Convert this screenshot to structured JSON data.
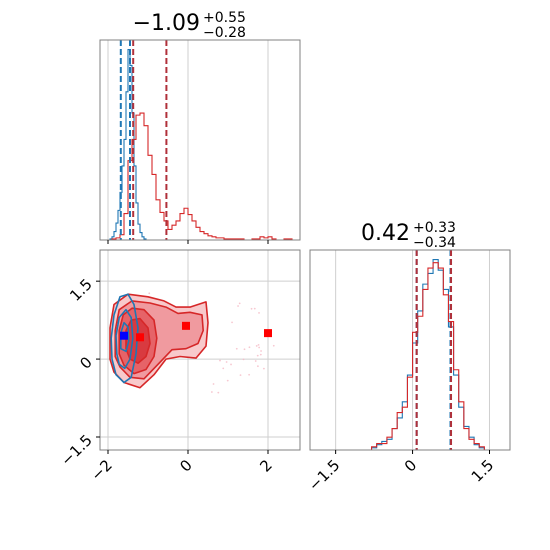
{
  "chart_data": [
    {
      "type": "histogram",
      "panel": "marginal-param-1",
      "title": {
        "value": "−1.09",
        "sup": "+0.55",
        "sub": "−0.28"
      },
      "xlim": [
        -2.2,
        2.8
      ],
      "xticks": [
        -2,
        0,
        2
      ],
      "grid": true,
      "quantile_lines": [
        {
          "series": "blue",
          "x": [
            -1.68,
            -1.45
          ]
        },
        {
          "series": "red",
          "x": [
            -1.37,
            -0.54
          ]
        }
      ],
      "series": [
        {
          "name": "blue",
          "color": "#1f77b4",
          "x_edges": [
            -2.0,
            -1.95,
            -1.9,
            -1.85,
            -1.8,
            -1.75,
            -1.7,
            -1.65,
            -1.6,
            -1.55,
            -1.5,
            -1.45,
            -1.4,
            -1.35,
            -1.3,
            -1.25,
            -1.2,
            -1.15,
            -1.1,
            -1.05,
            -1.0
          ],
          "counts": [
            0,
            1,
            3,
            8,
            16,
            28,
            45,
            70,
            95,
            140,
            180,
            165,
            120,
            70,
            35,
            15,
            7,
            3,
            1,
            0
          ]
        },
        {
          "name": "red",
          "color": "#d62728",
          "x_edges": [
            -2.0,
            -1.9,
            -1.8,
            -1.7,
            -1.6,
            -1.5,
            -1.4,
            -1.3,
            -1.2,
            -1.1,
            -1.0,
            -0.9,
            -0.8,
            -0.7,
            -0.6,
            -0.5,
            -0.4,
            -0.3,
            -0.2,
            -0.1,
            0.0,
            0.1,
            0.2,
            0.3,
            0.4,
            0.5,
            0.6,
            0.7,
            0.8,
            0.9,
            1.0,
            1.2,
            1.4,
            1.6,
            1.8,
            1.9,
            2.0,
            2.1,
            2.2,
            2.4,
            2.6
          ],
          "counts": [
            0,
            1,
            2,
            5,
            25,
            75,
            95,
            118,
            120,
            108,
            80,
            62,
            38,
            26,
            18,
            10,
            14,
            18,
            25,
            30,
            24,
            18,
            12,
            8,
            6,
            4,
            3,
            2,
            2,
            1,
            1,
            1,
            0,
            1,
            3,
            2,
            3,
            1,
            0,
            1
          ]
        }
      ]
    },
    {
      "type": "scatter-contour",
      "panel": "joint",
      "xlim": [
        -2.2,
        2.8
      ],
      "ylim": [
        -1.75,
        2.1
      ],
      "xticks": [
        -2,
        0,
        2
      ],
      "yticks": [
        -1.5,
        0.0,
        1.5
      ],
      "grid": true,
      "blue_contours": [
        [
          [
            -1.9,
            0.0
          ],
          [
            -1.92,
            0.4
          ],
          [
            -1.85,
            0.85
          ],
          [
            -1.7,
            1.2
          ],
          [
            -1.5,
            1.25
          ],
          [
            -1.35,
            1.05
          ],
          [
            -1.25,
            0.6
          ],
          [
            -1.3,
            0.1
          ],
          [
            -1.42,
            -0.35
          ],
          [
            -1.6,
            -0.45
          ],
          [
            -1.8,
            -0.3
          ]
        ],
        [
          [
            -1.78,
            0.1
          ],
          [
            -1.8,
            0.45
          ],
          [
            -1.72,
            0.8
          ],
          [
            -1.55,
            0.95
          ],
          [
            -1.42,
            0.8
          ],
          [
            -1.38,
            0.4
          ],
          [
            -1.45,
            0.0
          ],
          [
            -1.58,
            -0.18
          ],
          [
            -1.72,
            -0.1
          ]
        ],
        [
          [
            -1.68,
            0.2
          ],
          [
            -1.68,
            0.5
          ],
          [
            -1.6,
            0.7
          ],
          [
            -1.5,
            0.62
          ],
          [
            -1.48,
            0.35
          ],
          [
            -1.55,
            0.15
          ]
        ]
      ],
      "red_contours": [
        [
          [
            -1.95,
            0.0
          ],
          [
            -1.95,
            0.6
          ],
          [
            -1.85,
            1.05
          ],
          [
            -1.5,
            1.25
          ],
          [
            -1.0,
            1.2
          ],
          [
            -0.6,
            1.12
          ],
          [
            -0.3,
            1.0
          ],
          [
            0.05,
            1.0
          ],
          [
            0.45,
            1.1
          ],
          [
            0.5,
            0.7
          ],
          [
            0.45,
            0.25
          ],
          [
            0.2,
            0.02
          ],
          [
            -0.2,
            0.05
          ],
          [
            -0.55,
            0.0
          ],
          [
            -0.85,
            -0.3
          ],
          [
            -1.2,
            -0.55
          ],
          [
            -1.6,
            -0.45
          ],
          [
            -1.85,
            -0.25
          ]
        ],
        [
          [
            -1.82,
            0.05
          ],
          [
            -1.82,
            0.55
          ],
          [
            -1.72,
            0.95
          ],
          [
            -1.4,
            1.12
          ],
          [
            -0.95,
            1.08
          ],
          [
            -0.55,
            1.0
          ],
          [
            -0.25,
            0.88
          ],
          [
            0.05,
            0.9
          ],
          [
            0.35,
            0.85
          ],
          [
            0.38,
            0.55
          ],
          [
            0.25,
            0.3
          ],
          [
            -0.05,
            0.2
          ],
          [
            -0.4,
            0.18
          ],
          [
            -0.75,
            -0.1
          ],
          [
            -1.1,
            -0.38
          ],
          [
            -1.45,
            -0.35
          ],
          [
            -1.7,
            -0.15
          ]
        ],
        [
          [
            -1.72,
            0.1
          ],
          [
            -1.72,
            0.55
          ],
          [
            -1.62,
            0.85
          ],
          [
            -1.4,
            0.98
          ],
          [
            -1.1,
            0.95
          ],
          [
            -0.85,
            0.75
          ],
          [
            -0.78,
            0.4
          ],
          [
            -0.85,
            0.05
          ],
          [
            -1.05,
            -0.2
          ],
          [
            -1.35,
            -0.28
          ],
          [
            -1.6,
            -0.12
          ]
        ],
        [
          [
            -1.55,
            0.2
          ],
          [
            -1.55,
            0.55
          ],
          [
            -1.42,
            0.75
          ],
          [
            -1.2,
            0.78
          ],
          [
            -1.0,
            0.6
          ],
          [
            -0.95,
            0.3
          ],
          [
            -1.05,
            0.05
          ],
          [
            -1.25,
            -0.08
          ],
          [
            -1.45,
            0.0
          ]
        ]
      ],
      "markers": [
        {
          "series": "blue",
          "x": -1.6,
          "y": 0.45
        },
        {
          "series": "red",
          "x": -1.2,
          "y": 0.42
        },
        {
          "series": "red",
          "x": -0.05,
          "y": 0.64
        },
        {
          "series": "red",
          "x": 2.0,
          "y": 0.5
        }
      ]
    },
    {
      "type": "histogram",
      "panel": "marginal-param-2",
      "title": {
        "value": "0.42",
        "sup": "+0.33",
        "sub": "−0.34"
      },
      "xlim": [
        -2.0,
        1.9
      ],
      "xticks": [
        -1.5,
        0.0,
        1.5
      ],
      "grid": true,
      "quantile_lines": [
        {
          "series": "blue",
          "x": [
            0.08,
            0.74
          ]
        },
        {
          "series": "red",
          "x": [
            0.08,
            0.75
          ]
        }
      ],
      "series": [
        {
          "name": "blue",
          "color": "#1f77b4",
          "x_edges": [
            -0.9,
            -0.8,
            -0.7,
            -0.6,
            -0.5,
            -0.4,
            -0.3,
            -0.2,
            -0.1,
            0.0,
            0.1,
            0.2,
            0.3,
            0.4,
            0.5,
            0.6,
            0.7,
            0.8,
            0.9,
            1.0,
            1.1,
            1.2,
            1.3,
            1.4,
            1.5
          ],
          "counts": [
            0,
            2,
            5,
            8,
            10,
            20,
            30,
            45,
            70,
            100,
            130,
            155,
            165,
            178,
            168,
            150,
            115,
            70,
            40,
            22,
            12,
            5,
            2,
            0
          ]
        },
        {
          "name": "red",
          "color": "#d62728",
          "x_edges": [
            -0.9,
            -0.8,
            -0.7,
            -0.6,
            -0.5,
            -0.4,
            -0.3,
            -0.2,
            -0.1,
            0.0,
            0.1,
            0.2,
            0.3,
            0.4,
            0.5,
            0.6,
            0.7,
            0.8,
            0.9,
            1.0,
            1.1,
            1.2,
            1.3,
            1.4,
            1.5
          ],
          "counts": [
            0,
            3,
            6,
            6,
            12,
            20,
            35,
            40,
            68,
            110,
            125,
            150,
            170,
            175,
            170,
            145,
            120,
            75,
            45,
            20,
            10,
            6,
            3,
            0
          ]
        }
      ]
    }
  ]
}
